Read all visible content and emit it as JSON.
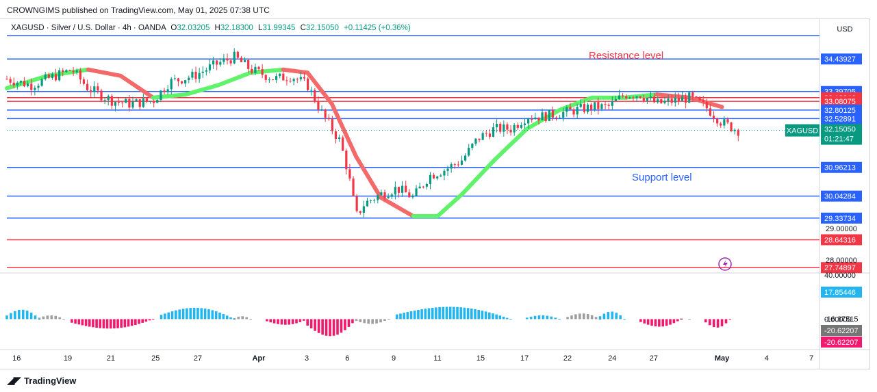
{
  "header": {
    "publisher": "CROWNGIMS published on TradingView.com, May 01, 2025 07:38 UTC",
    "symbol": "XAGUSD · Silver / U.S. Dollar · 4h · OANDA",
    "open_label": "O",
    "open": "32.03205",
    "high_label": "H",
    "high": "32.18300",
    "low_label": "L",
    "low": "31.99345",
    "close_label": "C",
    "close": "32.15050",
    "change": "+0.11425 (+0.36%)"
  },
  "currency": "USD",
  "footer": {
    "logo_text": "TradingView"
  },
  "colors": {
    "up": "#089981",
    "down": "#f23645",
    "level_blue": "#2962ff",
    "level_red": "#f23645",
    "hist_pos": "#22b5f0",
    "hist_neg": "#f0196e",
    "hist_neutral": "#9e9e9e",
    "ribbon_up": "#5ff26a",
    "ribbon_down": "#f26a6a"
  },
  "chart_data": [
    {
      "type": "candlestick",
      "symbol": "XAGUSD",
      "timeframe": "4h",
      "ylim": [
        27.6,
        35.3
      ],
      "x_ticks": [
        "16",
        "19",
        "21",
        "25",
        "27",
        "Apr",
        "3",
        "6",
        "9",
        "11",
        "15",
        "17",
        "22",
        "24",
        "27",
        "May",
        "4",
        "7"
      ],
      "y_axis_labels": [
        "29.00000",
        "28.00000"
      ],
      "last_price": {
        "label": "XAGUSD",
        "value": "32.15050",
        "countdown": "01:21:47"
      },
      "levels": [
        {
          "value": 34.43927,
          "label": "34.43927",
          "color": "blue"
        },
        {
          "value": 33.39705,
          "label": "33.39705",
          "color": "blue"
        },
        {
          "value": 33.19946,
          "label": "33.19946",
          "color": "red"
        },
        {
          "value": 33.08075,
          "label": "33.08075",
          "color": "red"
        },
        {
          "value": 32.80125,
          "label": "32.80125",
          "color": "blue"
        },
        {
          "value": 32.52891,
          "label": "32.52891",
          "color": "blue"
        },
        {
          "value": 30.96213,
          "label": "30.96213",
          "color": "blue"
        },
        {
          "value": 30.04284,
          "label": "30.04284",
          "color": "blue"
        },
        {
          "value": 29.33734,
          "label": "29.33734",
          "color": "blue"
        },
        {
          "value": 28.64316,
          "label": "28.64316",
          "color": "red"
        },
        {
          "value": 27.74897,
          "label": "27.74897",
          "color": "red"
        }
      ],
      "annotations": [
        {
          "text": "Resistance level",
          "color": "red"
        },
        {
          "text": "Support level",
          "color": "blue"
        }
      ],
      "price_path": [
        [
          0,
          33.8
        ],
        [
          0.03,
          33.6
        ],
        [
          0.06,
          33.9
        ],
        [
          0.08,
          34.1
        ],
        [
          0.1,
          33.5
        ],
        [
          0.13,
          33.1
        ],
        [
          0.15,
          33.0
        ],
        [
          0.18,
          33.1
        ],
        [
          0.2,
          33.7
        ],
        [
          0.23,
          33.9
        ],
        [
          0.26,
          34.3
        ],
        [
          0.28,
          34.5
        ],
        [
          0.3,
          34.1
        ],
        [
          0.33,
          33.8
        ],
        [
          0.35,
          33.9
        ],
        [
          0.37,
          33.6
        ],
        [
          0.39,
          32.6
        ],
        [
          0.41,
          31.8
        ],
        [
          0.42,
          30.8
        ],
        [
          0.43,
          29.4
        ],
        [
          0.44,
          29.8
        ],
        [
          0.46,
          30.1
        ],
        [
          0.48,
          30.3
        ],
        [
          0.5,
          30.0
        ],
        [
          0.52,
          30.7
        ],
        [
          0.54,
          30.9
        ],
        [
          0.56,
          31.2
        ],
        [
          0.58,
          31.9
        ],
        [
          0.6,
          32.2
        ],
        [
          0.62,
          32.2
        ],
        [
          0.64,
          32.6
        ],
        [
          0.66,
          32.6
        ],
        [
          0.68,
          32.7
        ],
        [
          0.7,
          32.8
        ],
        [
          0.72,
          32.9
        ],
        [
          0.74,
          32.9
        ],
        [
          0.76,
          33.3
        ],
        [
          0.78,
          33.3
        ],
        [
          0.8,
          33.0
        ],
        [
          0.82,
          33.1
        ],
        [
          0.84,
          33.2
        ],
        [
          0.86,
          32.9
        ],
        [
          0.88,
          32.4
        ],
        [
          0.9,
          32.15
        ]
      ],
      "ribbon": [
        [
          0,
          33.5
        ],
        [
          0.05,
          33.9
        ],
        [
          0.1,
          34.1
        ],
        [
          0.14,
          33.9
        ],
        [
          0.18,
          33.2
        ],
        [
          0.22,
          33.3
        ],
        [
          0.26,
          33.6
        ],
        [
          0.3,
          34.0
        ],
        [
          0.34,
          34.1
        ],
        [
          0.37,
          34.0
        ],
        [
          0.4,
          33.0
        ],
        [
          0.43,
          31.3
        ],
        [
          0.46,
          30.0
        ],
        [
          0.5,
          29.4
        ],
        [
          0.53,
          29.4
        ],
        [
          0.56,
          30.1
        ],
        [
          0.6,
          31.2
        ],
        [
          0.64,
          32.2
        ],
        [
          0.68,
          32.8
        ],
        [
          0.72,
          33.2
        ],
        [
          0.76,
          33.2
        ],
        [
          0.8,
          33.3
        ],
        [
          0.84,
          33.2
        ],
        [
          0.88,
          32.9
        ]
      ]
    },
    {
      "type": "histogram",
      "name": "oscillator",
      "ylim": [
        -25,
        40
      ],
      "y_axis_labels": [
        "40.00000",
        "17.85446",
        "0.00000",
        "-16.37515",
        "-20.62207",
        "-20.62207"
      ],
      "segments": [
        {
          "from": 0.0,
          "to": 0.04,
          "peak": 10,
          "sign": "pos"
        },
        {
          "from": 0.04,
          "to": 0.07,
          "peak": 4,
          "sign": "neutral"
        },
        {
          "from": 0.08,
          "to": 0.18,
          "peak": -10,
          "sign": "neg"
        },
        {
          "from": 0.19,
          "to": 0.28,
          "peak": 12,
          "sign": "pos"
        },
        {
          "from": 0.28,
          "to": 0.3,
          "peak": 3,
          "sign": "neutral"
        },
        {
          "from": 0.32,
          "to": 0.37,
          "peak": -6,
          "sign": "neg"
        },
        {
          "from": 0.37,
          "to": 0.43,
          "peak": -18,
          "sign": "neg"
        },
        {
          "from": 0.43,
          "to": 0.47,
          "peak": -5,
          "sign": "neutral"
        },
        {
          "from": 0.48,
          "to": 0.62,
          "peak": 13,
          "sign": "pos"
        },
        {
          "from": 0.64,
          "to": 0.68,
          "peak": 4,
          "sign": "pos"
        },
        {
          "from": 0.69,
          "to": 0.73,
          "peak": 6,
          "sign": "neutral"
        },
        {
          "from": 0.73,
          "to": 0.76,
          "peak": 8,
          "sign": "pos"
        },
        {
          "from": 0.78,
          "to": 0.83,
          "peak": -8,
          "sign": "neg"
        },
        {
          "from": 0.83,
          "to": 0.84,
          "peak": 2,
          "sign": "neutral"
        },
        {
          "from": 0.86,
          "to": 0.89,
          "peak": -9,
          "sign": "neg"
        }
      ]
    }
  ]
}
